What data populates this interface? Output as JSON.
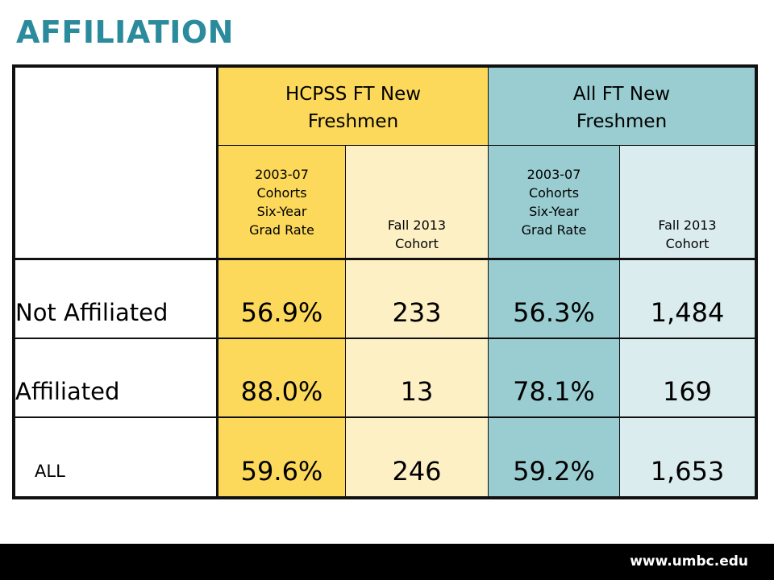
{
  "title": "AFFILIATION",
  "table": {
    "groups": [
      "HCPSS FT New\nFreshmen",
      "All FT New\nFreshmen"
    ],
    "subheaders": [
      "2003-07\nCohorts\nSix-Year\nGrad Rate",
      "Fall 2013\nCohort",
      "2003-07\nCohorts\nSix-Year\nGrad Rate",
      "Fall 2013\nCohort"
    ],
    "rows": [
      {
        "label": "Not Affiliated",
        "values": [
          "56.9%",
          "233",
          "56.3%",
          "1,484"
        ]
      },
      {
        "label": "Affiliated",
        "values": [
          "88.0%",
          "13",
          "78.1%",
          "169"
        ]
      },
      {
        "label": "ALL",
        "values": [
          "59.6%",
          "246",
          "59.2%",
          "1,653"
        ]
      }
    ]
  },
  "colors": {
    "title": "#2a8b9c",
    "hcpss_dark": "#fcd95a",
    "hcpss_light": "#fdf0c4",
    "all_dark": "#99cdd1",
    "all_light": "#dbecef"
  },
  "footer": {
    "url": "www.umbc.edu"
  }
}
